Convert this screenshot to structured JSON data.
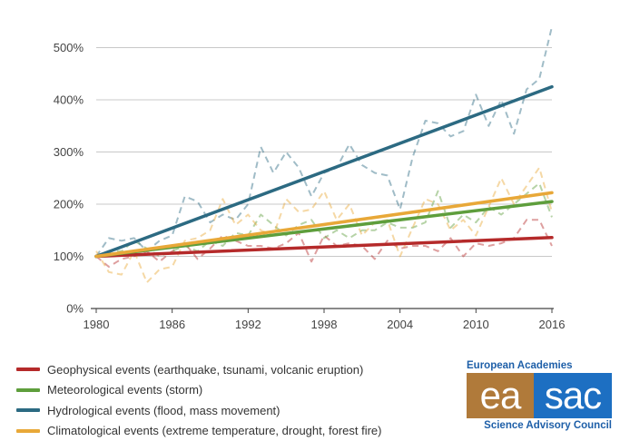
{
  "chart_data": {
    "type": "line",
    "title": "",
    "xlabel": "",
    "ylabel": "",
    "x": [
      1980,
      1981,
      1982,
      1983,
      1984,
      1985,
      1986,
      1987,
      1988,
      1989,
      1990,
      1991,
      1992,
      1993,
      1994,
      1995,
      1996,
      1997,
      1998,
      1999,
      2000,
      2001,
      2002,
      2003,
      2004,
      2005,
      2006,
      2007,
      2008,
      2009,
      2010,
      2011,
      2012,
      2013,
      2014,
      2015,
      2016
    ],
    "x_ticks": [
      1980,
      1986,
      1992,
      1998,
      2004,
      2010,
      2016
    ],
    "x_tick_labels": [
      "1980",
      "1986",
      "1992",
      "1998",
      "2004",
      "2010",
      "2016"
    ],
    "y_ticks": [
      0,
      100,
      200,
      300,
      400,
      500
    ],
    "y_tick_labels": [
      "0%",
      "100%",
      "200%",
      "300%",
      "400%",
      "500%"
    ],
    "xlim": [
      1980,
      2016
    ],
    "ylim": [
      0,
      560
    ],
    "grid": "horizontal",
    "series": [
      {
        "name": "Geophysical events (earthquake, tsunami, volcanic eruption)",
        "color": "#b52a2a",
        "values": [
          100,
          80,
          95,
          100,
          110,
          90,
          110,
          125,
          95,
          115,
          140,
          130,
          120,
          120,
          115,
          125,
          145,
          90,
          140,
          120,
          125,
          120,
          95,
          130,
          115,
          120,
          120,
          110,
          135,
          100,
          125,
          120,
          125,
          135,
          170,
          170,
          120
        ],
        "trend": [
          100,
          136
        ]
      },
      {
        "name": "Meteorological events (storm)",
        "color": "#5e9e3c",
        "values": [
          100,
          110,
          110,
          130,
          115,
          100,
          110,
          120,
          110,
          130,
          120,
          145,
          140,
          180,
          160,
          140,
          160,
          170,
          135,
          150,
          135,
          150,
          150,
          165,
          155,
          155,
          165,
          225,
          155,
          180,
          165,
          195,
          180,
          200,
          220,
          240,
          175
        ],
        "trend": [
          100,
          205
        ]
      },
      {
        "name": "Hydrological events (flood, mass movement)",
        "color": "#2c6a82",
        "values": [
          100,
          135,
          130,
          135,
          110,
          130,
          140,
          215,
          205,
          165,
          180,
          170,
          200,
          310,
          260,
          300,
          270,
          215,
          260,
          270,
          315,
          275,
          260,
          255,
          190,
          290,
          360,
          355,
          330,
          340,
          410,
          350,
          400,
          335,
          420,
          440,
          540
        ],
        "trend": [
          100,
          425
        ]
      },
      {
        "name": "Climatological events (extreme temperature, drought, forest fire)",
        "color": "#e8a838",
        "values": [
          110,
          70,
          65,
          110,
          50,
          75,
          80,
          130,
          135,
          150,
          210,
          160,
          180,
          150,
          140,
          210,
          185,
          190,
          225,
          170,
          200,
          140,
          165,
          170,
          100,
          155,
          210,
          200,
          150,
          170,
          140,
          195,
          250,
          200,
          235,
          270,
          185
        ],
        "trend": [
          100,
          222
        ]
      }
    ]
  },
  "logo": {
    "top_text": "European Academies",
    "left_text": "ea",
    "right_text": "sac",
    "bottom_text": "Science Advisory Council",
    "left_color": "#b07a3a",
    "right_color": "#1d6fc2"
  }
}
